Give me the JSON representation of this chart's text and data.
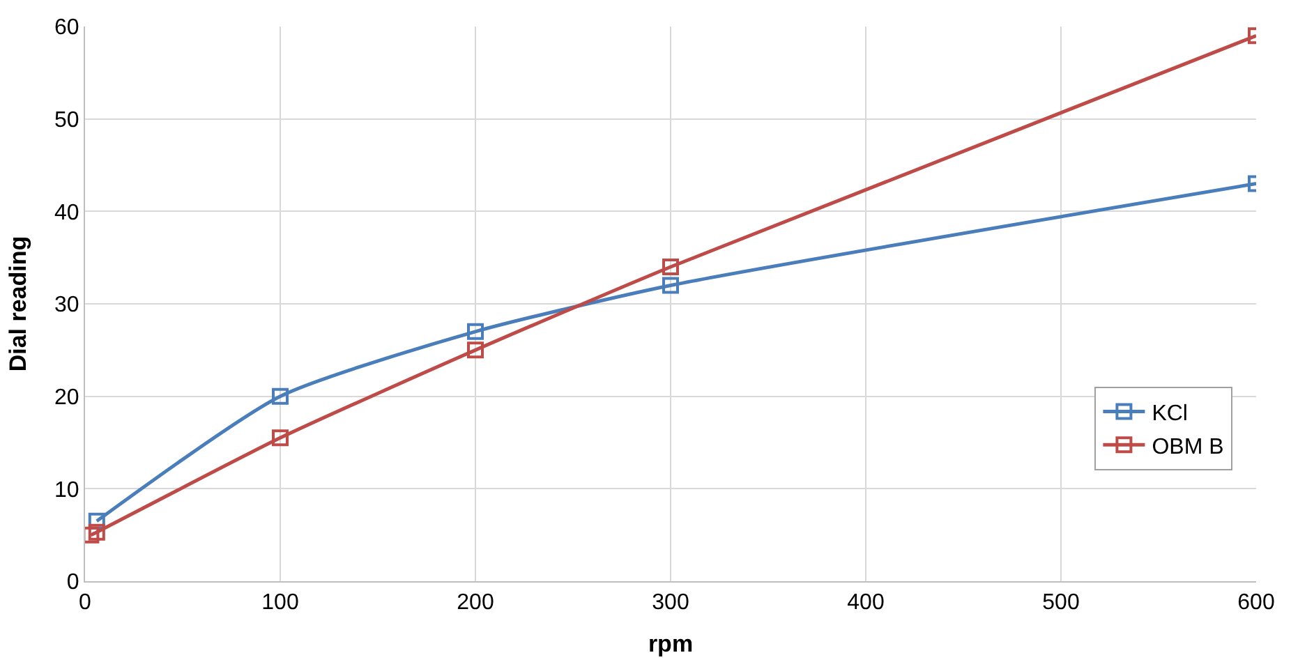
{
  "chart_data": {
    "type": "line",
    "xlabel": "rpm",
    "ylabel": "Dial reading",
    "xlim": [
      0,
      600
    ],
    "xticks": [
      0,
      100,
      200,
      300,
      400,
      500,
      600
    ],
    "ylim": [
      0,
      60
    ],
    "yticks": [
      0,
      10,
      20,
      30,
      40,
      50,
      60
    ],
    "grid": true,
    "legend": "right",
    "marker": "square",
    "line_style": "solid",
    "series": [
      {
        "name": "KCl",
        "color": "#4a7ebb",
        "x": [
          6,
          100,
          200,
          300,
          600
        ],
        "values": [
          6.5,
          20,
          27,
          32,
          43
        ]
      },
      {
        "name": "OBM B",
        "color": "#be4b48",
        "x": [
          3,
          6,
          100,
          200,
          300,
          600
        ],
        "values": [
          5,
          5.3,
          15.5,
          25,
          34,
          59
        ]
      }
    ]
  }
}
